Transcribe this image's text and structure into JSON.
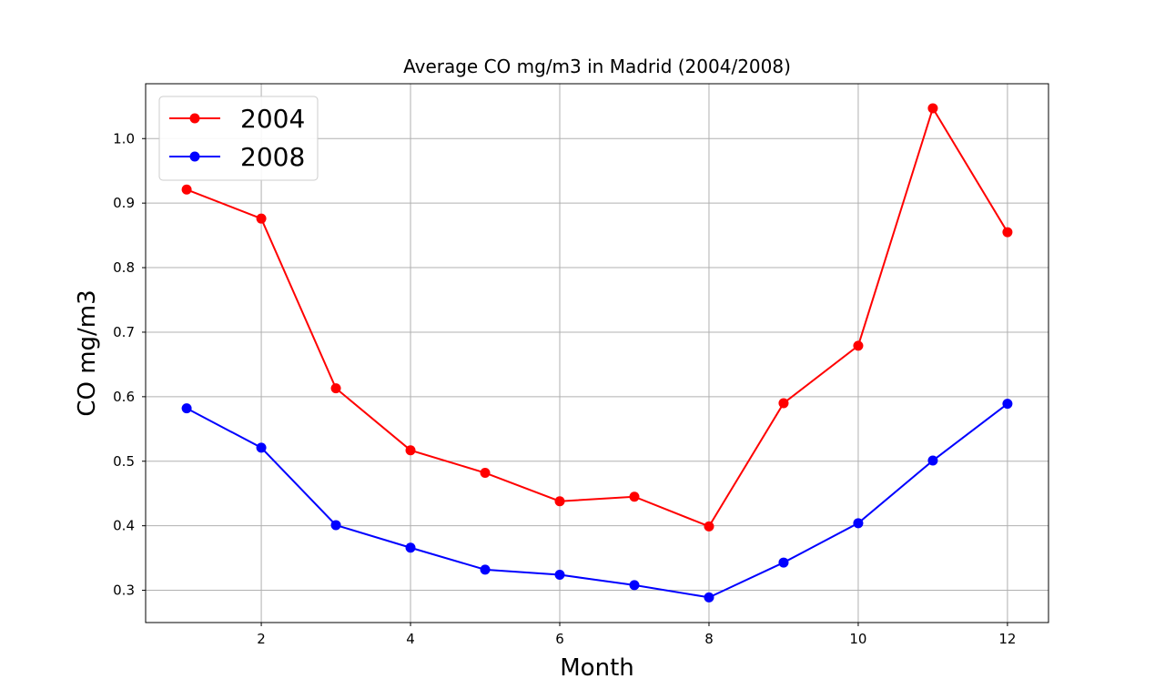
{
  "chart_data": {
    "type": "line",
    "title": "Average CO mg/m3 in Madrid (2004/2008)",
    "xlabel": "Month",
    "ylabel": "CO mg/m3",
    "x": [
      1,
      2,
      3,
      4,
      5,
      6,
      7,
      8,
      9,
      10,
      11,
      12
    ],
    "xlim": [
      0.45,
      12.55
    ],
    "ylim": [
      0.25,
      1.085
    ],
    "xticks": [
      2,
      4,
      6,
      8,
      10,
      12
    ],
    "yticks": [
      0.3,
      0.4,
      0.5,
      0.6,
      0.7,
      0.8,
      0.9,
      1.0
    ],
    "xtick_labels": [
      "2",
      "4",
      "6",
      "8",
      "10",
      "12"
    ],
    "ytick_labels": [
      "0.3",
      "0.4",
      "0.5",
      "0.6",
      "0.7",
      "0.8",
      "0.9",
      "1.0"
    ],
    "grid": true,
    "legend_position": "top-left",
    "series": [
      {
        "name": "2004",
        "color": "#ff0000",
        "values": [
          0.921,
          0.876,
          0.613,
          0.517,
          0.482,
          0.438,
          0.445,
          0.399,
          0.59,
          0.679,
          1.047,
          0.855
        ]
      },
      {
        "name": "2008",
        "color": "#0000ff",
        "values": [
          0.582,
          0.521,
          0.401,
          0.366,
          0.332,
          0.324,
          0.308,
          0.289,
          0.343,
          0.404,
          0.501,
          0.589
        ]
      }
    ]
  }
}
